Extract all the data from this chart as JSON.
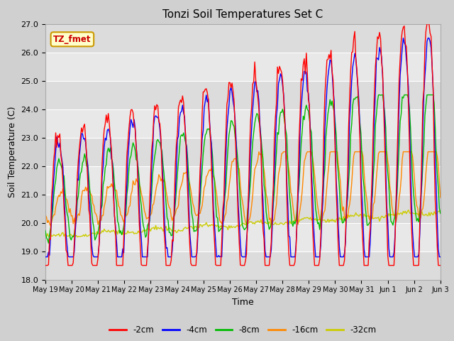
{
  "title": "Tonzi Soil Temperatures Set C",
  "xlabel": "Time",
  "ylabel": "Soil Temperature (C)",
  "ylim": [
    18.0,
    27.0
  ],
  "yticks": [
    18.0,
    19.0,
    20.0,
    21.0,
    22.0,
    23.0,
    24.0,
    25.0,
    26.0,
    27.0
  ],
  "xtick_labels": [
    "May 19",
    "May 20",
    "May 21",
    "May 22",
    "May 23",
    "May 24",
    "May 25",
    "May 26",
    "May 27",
    "May 28",
    "May 29",
    "May 30",
    "May 31",
    "Jun 1",
    "Jun 2",
    "Jun 3"
  ],
  "annotation_text": "TZ_fmet",
  "annotation_color": "#cc0000",
  "annotation_bg": "#ffffcc",
  "annotation_border": "#cc9900",
  "line_colors": {
    "2cm": "#ff0000",
    "4cm": "#0000ff",
    "8cm": "#00bb00",
    "16cm": "#ff8800",
    "32cm": "#cccc00"
  },
  "legend_labels": [
    "-2cm",
    "-4cm",
    "-8cm",
    "-16cm",
    "-32cm"
  ],
  "band_colors": [
    "#dcdcdc",
    "#e8e8e8",
    "#dcdcdc",
    "#e8e8e8",
    "#dcdcdc",
    "#e8e8e8",
    "#dcdcdc",
    "#e8e8e8",
    "#dcdcdc"
  ]
}
